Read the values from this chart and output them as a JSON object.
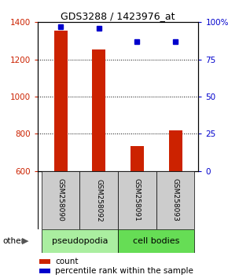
{
  "title": "GDS3288 / 1423976_at",
  "samples": [
    "GSM258090",
    "GSM258092",
    "GSM258091",
    "GSM258093"
  ],
  "counts": [
    1355,
    1252,
    735,
    818
  ],
  "percentiles": [
    97,
    96,
    87,
    87
  ],
  "ylim_left": [
    600,
    1400
  ],
  "ylim_right": [
    0,
    100
  ],
  "yticks_left": [
    600,
    800,
    1000,
    1200,
    1400
  ],
  "yticks_right": [
    0,
    25,
    50,
    75,
    100
  ],
  "bar_color": "#cc2200",
  "dot_color": "#0000cc",
  "groups": [
    {
      "label": "pseudopodia",
      "color": "#aaeea0",
      "indices": [
        0,
        1
      ]
    },
    {
      "label": "cell bodies",
      "color": "#66dd55",
      "indices": [
        2,
        3
      ]
    }
  ],
  "other_label": "other",
  "legend_count_label": "count",
  "legend_pct_label": "percentile rank within the sample",
  "bar_width": 0.35,
  "grid_color": "#000000",
  "left_axis_color": "#cc2200",
  "right_axis_color": "#0000cc",
  "sample_label_bg": "#cccccc",
  "sample_label_fontsize": 6.5
}
